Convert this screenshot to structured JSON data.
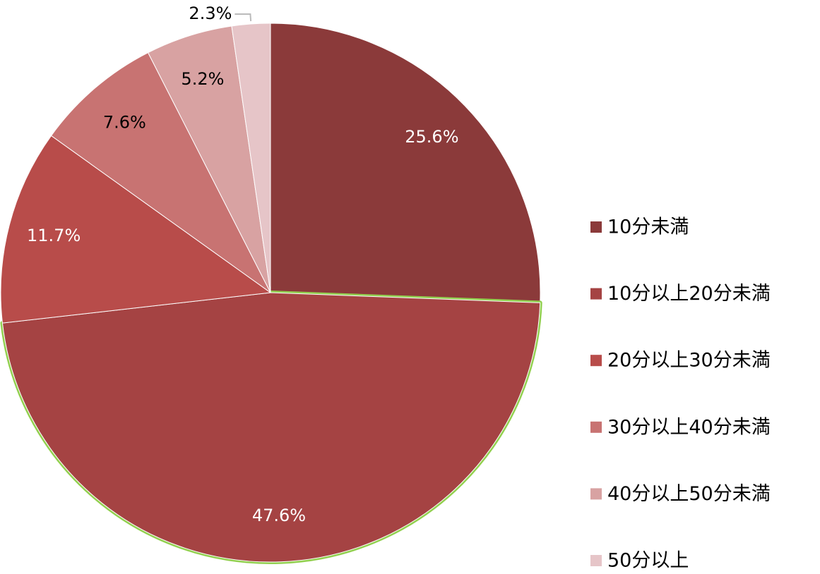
{
  "chart_data": {
    "type": "pie",
    "categories": [
      "10分未満",
      "10分以上20分未満",
      "20分以上30分未満",
      "30分以上40分未満",
      "40分以上50分未満",
      "50分以上"
    ],
    "values": [
      25.6,
      47.6,
      11.7,
      7.6,
      5.2,
      2.3
    ],
    "value_labels": [
      "25.6%",
      "47.6%",
      "11.7%",
      "7.6%",
      "5.2%",
      "2.3%"
    ],
    "colors": [
      "#8b3a3a",
      "#a54343",
      "#b84c4a",
      "#c87372",
      "#d8a2a2",
      "#e6c5c8"
    ],
    "highlight": {
      "index": 1,
      "color": "#92d050"
    },
    "legend": "right"
  }
}
